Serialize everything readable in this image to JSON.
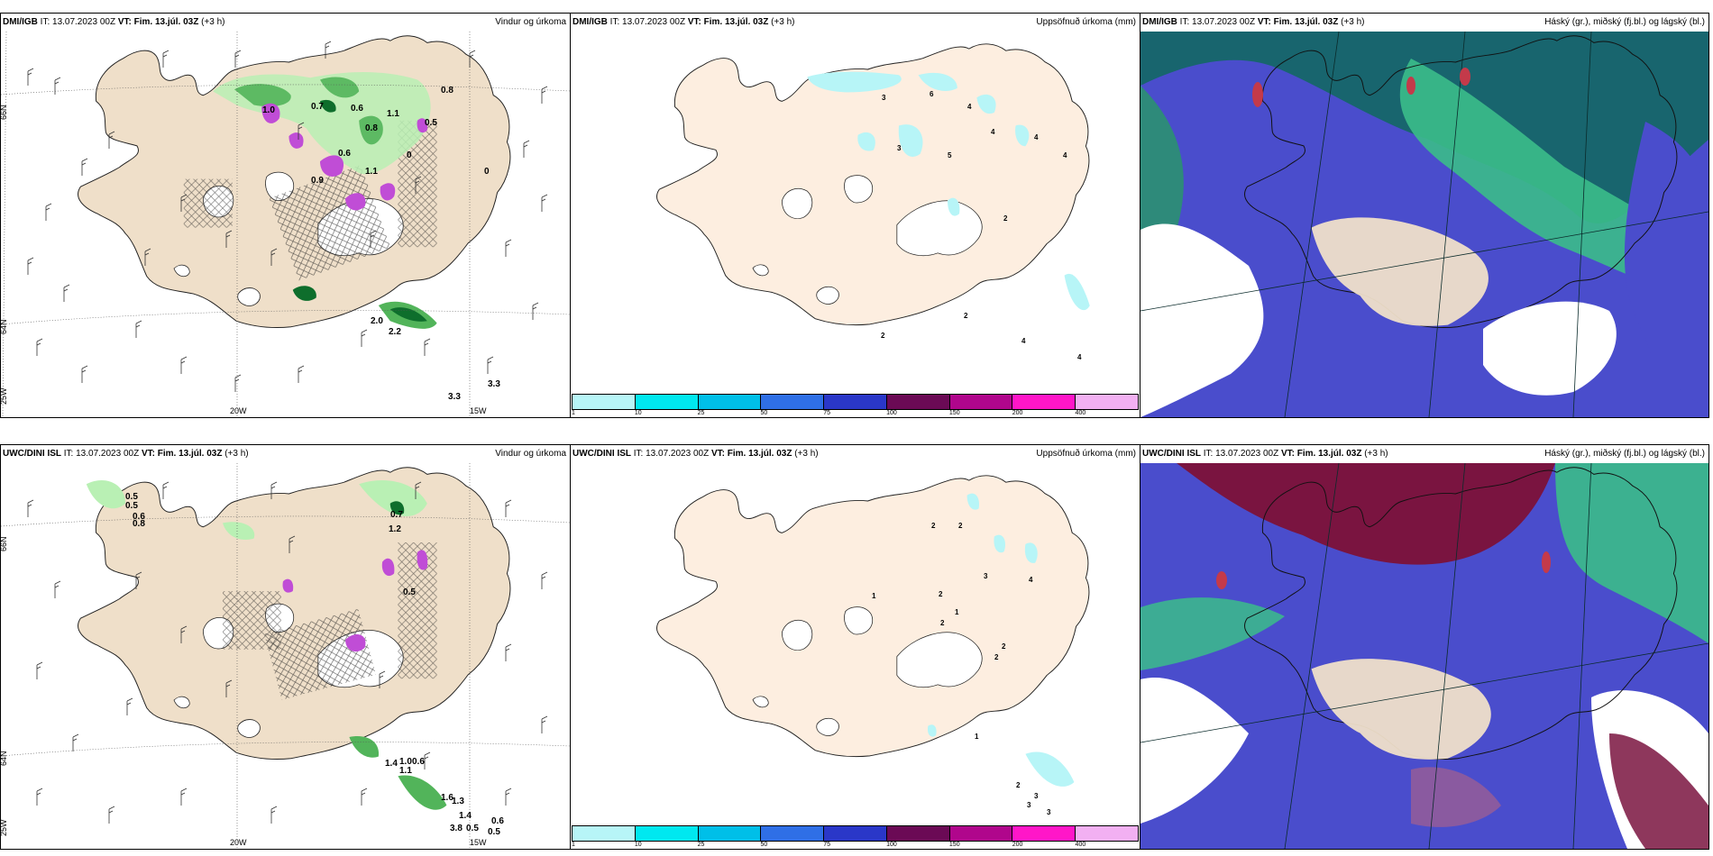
{
  "panels": {
    "p1": {
      "source": "DMI/IGB",
      "it": "IT: 13.07.2023 00Z",
      "vt": "VT: Fim. 13.júl. 03Z",
      "lead": "(+3 h)",
      "title": "Vindur og úrkoma"
    },
    "p2": {
      "source": "DMI/IGB",
      "it": "IT: 13.07.2023 00Z",
      "vt": "VT: Fim. 13.júl. 03Z",
      "lead": "(+3 h)",
      "title": "Uppsöfnuð úrkoma (mm)"
    },
    "p3": {
      "source": "DMI/IGB",
      "it": "IT: 13.07.2023 00Z",
      "vt": "VT: Fim. 13.júl. 03Z",
      "lead": "(+3 h)",
      "title": "Háský (gr.), miðský (fj.bl.) og lágský (bl.)"
    },
    "p4": {
      "source": "UWC/DINI ISL",
      "it": "IT: 13.07.2023 00Z",
      "vt": "VT: Fim. 13.júl. 03Z",
      "lead": "(+3 h)",
      "title": "Vindur og úrkoma"
    },
    "p5": {
      "source": "UWC/DINI ISL",
      "it": "IT: 13.07.2023 00Z",
      "vt": "VT: Fim. 13.júl. 03Z",
      "lead": "(+3 h)",
      "title": "Uppsöfnuð úrkoma (mm)"
    },
    "p6": {
      "source": "UWC/DINI ISL",
      "it": "IT: 13.07.2023 00Z",
      "vt": "VT: Fim. 13.júl. 03Z",
      "lead": "(+3 h)",
      "title": "Háský (gr.), miðský (fj.bl.) og lágský (bl.)"
    }
  },
  "axes": {
    "lat66": "66N",
    "lat64": "64N",
    "lon25": "25W",
    "lon20": "20W",
    "lon15": "15W"
  },
  "wind_precip_labels_top": [
    "1.0",
    "0.7",
    "0.6",
    "1.1",
    "0.8",
    "0.5",
    "0.8",
    "0.6",
    "0.9",
    "1.1",
    "0",
    "0",
    "2.0",
    "2.2",
    "3.3",
    "3.3"
  ],
  "wind_precip_labels_bottom": [
    "0.5",
    "0.5",
    "0.6",
    "0.8",
    "0.7",
    "1.2",
    "0.5",
    "1.4",
    "1.0",
    "0.6",
    "1.1",
    "1.6",
    "1.3",
    "1.4",
    "3.8",
    "0.5",
    "0.6",
    "0.5"
  ],
  "accum_labels_top": [
    "3",
    "6",
    "4",
    "3",
    "4",
    "4",
    "5",
    "4",
    "2",
    "2",
    "4",
    "4",
    "2"
  ],
  "accum_labels_bottom": [
    "2",
    "2",
    "3",
    "4",
    "1",
    "2",
    "1",
    "2",
    "2",
    "2",
    "1",
    "2",
    "3",
    "3",
    "3"
  ],
  "colorbar": {
    "ticks": [
      "1",
      "10",
      "25",
      "50",
      "75",
      "100",
      "150",
      "200",
      "400"
    ],
    "colors": [
      "#b7f5f7",
      "#00e8f0",
      "#00bfe8",
      "#2f6fe6",
      "#2a37c8",
      "#6b0a55",
      "#b0068c",
      "#ff16c8",
      "#f2b0f2"
    ]
  },
  "colors": {
    "land_wind": "#efdfc9",
    "land_accum": "#fdeee0",
    "glacier": "#ffffff",
    "precip_light": "#b9f0b4",
    "precip_mid": "#52b45a",
    "precip_dark": "#0e6e2c",
    "precip_magenta": "#c04dd6",
    "cloud_high": "#18656e",
    "cloud_mid": "#3bbd8a",
    "cloud_low": "#4a4dcc"
  }
}
